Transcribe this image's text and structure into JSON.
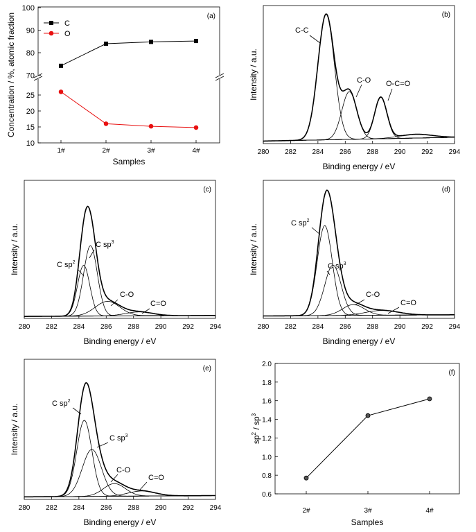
{
  "chart_data": [
    {
      "panel": "(a)",
      "type": "line",
      "xlabel": "Samples",
      "ylabel": "Concentration / %, atomic fraction",
      "categories": [
        "1#",
        "2#",
        "3#",
        "4#"
      ],
      "axis_break": true,
      "upper_yticks": [
        "70",
        "80",
        "90",
        "100"
      ],
      "lower_yticks": [
        "10",
        "15",
        "20",
        "25"
      ],
      "upper_ylim": [
        68,
        100
      ],
      "lower_ylim": [
        10,
        28
      ],
      "legend_position": "top-left",
      "series": [
        {
          "name": "C",
          "marker": "square",
          "color": "#000000",
          "values": [
            74.2,
            84.0,
            84.8,
            85.2
          ]
        },
        {
          "name": "O",
          "marker": "circle",
          "color": "#e81010",
          "values": [
            26.0,
            16.0,
            15.2,
            14.8
          ]
        }
      ]
    },
    {
      "panel": "(b)",
      "type": "line",
      "xlabel": "Binding energy / eV",
      "ylabel": "Intensity / a.u.",
      "xticks": [
        "280",
        "282",
        "284",
        "286",
        "288",
        "290",
        "292",
        "294"
      ],
      "xlim": [
        280,
        294
      ],
      "baseline": [
        0.02,
        0.05
      ],
      "peaks": [
        {
          "label": "C-C",
          "center": 284.6,
          "height": 1.0,
          "sigma": 0.6
        },
        {
          "label": "C-O",
          "center": 286.3,
          "height": 0.38,
          "sigma": 0.55
        },
        {
          "label": "O-C=O",
          "center": 288.6,
          "height": 0.33,
          "sigma": 0.45
        },
        {
          "label": "",
          "center": 291.2,
          "height": 0.03,
          "sigma": 1.2
        }
      ]
    },
    {
      "panel": "(c)",
      "type": "line",
      "xlabel": "Binding energy / eV",
      "ylabel": "Intensity / a.u.",
      "xticks": [
        "280",
        "282",
        "284",
        "286",
        "288",
        "290",
        "292",
        "294"
      ],
      "xlim": [
        280,
        294
      ],
      "baseline": [
        0.02,
        0.03
      ],
      "peaks": [
        {
          "label": "C sp",
          "sup": "2",
          "center": 284.35,
          "height": 0.52,
          "sigma": 0.45
        },
        {
          "label": "C sp",
          "sup": "3",
          "center": 284.85,
          "height": 0.72,
          "sigma": 0.5
        },
        {
          "label": "C-O",
          "center": 286.1,
          "height": 0.15,
          "sigma": 0.9
        },
        {
          "label": "C=O",
          "center": 288.4,
          "height": 0.04,
          "sigma": 1.0
        }
      ]
    },
    {
      "panel": "(d)",
      "type": "line",
      "xlabel": "Binding energy / eV",
      "ylabel": "Intensity / a.u.",
      "xticks": [
        "280",
        "282",
        "284",
        "286",
        "288",
        "290",
        "292",
        "294"
      ],
      "xlim": [
        280,
        294
      ],
      "baseline": [
        0.02,
        0.03
      ],
      "peaks": [
        {
          "label": "C sp",
          "sup": "2",
          "center": 284.5,
          "height": 0.75,
          "sigma": 0.55
        },
        {
          "label": "C sp",
          "sup": "3",
          "center": 285.1,
          "height": 0.42,
          "sigma": 0.6
        },
        {
          "label": "C-O",
          "center": 286.6,
          "height": 0.09,
          "sigma": 0.8
        },
        {
          "label": "C=O",
          "center": 288.7,
          "height": 0.04,
          "sigma": 1.2
        }
      ]
    },
    {
      "panel": "(e)",
      "type": "line",
      "xlabel": "Binding energy / eV",
      "ylabel": "Intensity / a.u.",
      "xticks": [
        "280",
        "282",
        "284",
        "286",
        "288",
        "290",
        "292",
        "294"
      ],
      "xlim": [
        280,
        294
      ],
      "baseline": [
        0.02,
        0.03
      ],
      "peaks": [
        {
          "label": "C sp",
          "sup": "2",
          "center": 284.4,
          "height": 0.6,
          "sigma": 0.55
        },
        {
          "label": "C sp",
          "sup": "3",
          "center": 284.95,
          "height": 0.37,
          "sigma": 0.7
        },
        {
          "label": "C-O",
          "center": 286.6,
          "height": 0.1,
          "sigma": 0.8
        },
        {
          "label": "C=O",
          "center": 288.6,
          "height": 0.04,
          "sigma": 1.0
        }
      ]
    },
    {
      "panel": "(f)",
      "type": "line",
      "xlabel": "Samples",
      "ylabel": "sp",
      "ylabel_parts": [
        "sp",
        "2",
        " / sp",
        "3"
      ],
      "categories": [
        "2#",
        "3#",
        "4#"
      ],
      "yticks": [
        "0.6",
        "0.8",
        "1.0",
        "1.2",
        "1.4",
        "1.6",
        "1.8",
        "2.0"
      ],
      "ylim": [
        0.6,
        2.0
      ],
      "series": [
        {
          "values": [
            0.77,
            1.44,
            1.62
          ]
        }
      ]
    }
  ]
}
